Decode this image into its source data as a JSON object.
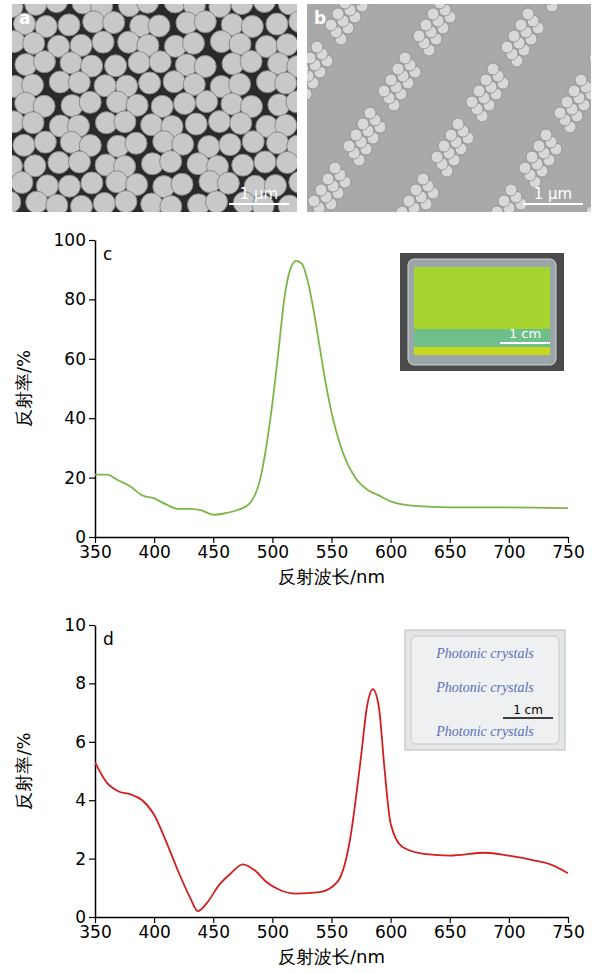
{
  "images": [
    {
      "label": "a",
      "scale_bar": "1 μm"
    },
    {
      "label": "b",
      "scale_bar": "1 μm"
    }
  ],
  "chart_data": [
    {
      "type": "line",
      "label": "c",
      "x_label": "反射波长/nm",
      "y_label": "反射率/%",
      "color": "#7ab648",
      "x": [
        350,
        360,
        370,
        380,
        390,
        400,
        410,
        420,
        430,
        440,
        450,
        460,
        470,
        480,
        490,
        500,
        505,
        510,
        515,
        520,
        525,
        530,
        535,
        540,
        545,
        550,
        560,
        570,
        580,
        590,
        600,
        620,
        650,
        700,
        750
      ],
      "values": [
        21,
        21,
        19,
        17,
        14,
        13,
        11,
        9.5,
        9.5,
        9,
        7.5,
        8,
        9,
        11,
        20,
        45,
        62,
        80,
        90,
        93,
        92,
        86,
        76,
        64,
        52,
        42,
        28,
        20,
        16,
        14,
        12,
        10.5,
        10,
        10,
        9.7
      ],
      "xlim": [
        350,
        750
      ],
      "xticks": [
        350,
        400,
        450,
        500,
        550,
        600,
        650,
        700,
        750
      ],
      "ylim": [
        0,
        100
      ],
      "yticks": [
        0,
        20,
        40,
        60,
        80,
        100
      ],
      "annotations": [
        "1 cm"
      ]
    },
    {
      "type": "line",
      "label": "d",
      "x_label": "反射波长/nm",
      "y_label": "反射率/%",
      "color": "#d02020",
      "x": [
        350,
        360,
        370,
        380,
        390,
        400,
        410,
        420,
        430,
        437,
        445,
        455,
        465,
        475,
        485,
        495,
        505,
        520,
        540,
        555,
        565,
        575,
        580,
        585,
        590,
        595,
        600,
        610,
        630,
        650,
        680,
        700,
        720,
        735,
        750
      ],
      "values": [
        5.3,
        4.6,
        4.3,
        4.2,
        4.0,
        3.5,
        2.6,
        1.6,
        0.7,
        0.2,
        0.5,
        1.1,
        1.5,
        1.8,
        1.6,
        1.2,
        0.95,
        0.8,
        0.85,
        1.2,
        2.5,
        5.5,
        7.2,
        7.8,
        7.2,
        5.0,
        3.2,
        2.4,
        2.15,
        2.1,
        2.2,
        2.1,
        1.95,
        1.8,
        1.5
      ],
      "xlim": [
        350,
        750
      ],
      "xticks": [
        350,
        400,
        450,
        500,
        550,
        600,
        650,
        700,
        750
      ],
      "ylim": [
        0,
        10
      ],
      "yticks": [
        0,
        2,
        4,
        6,
        8,
        10
      ],
      "annotations": [
        "Photonic crystals",
        "Photonic crystals",
        "Photonic crystals",
        "1 cm"
      ]
    }
  ]
}
